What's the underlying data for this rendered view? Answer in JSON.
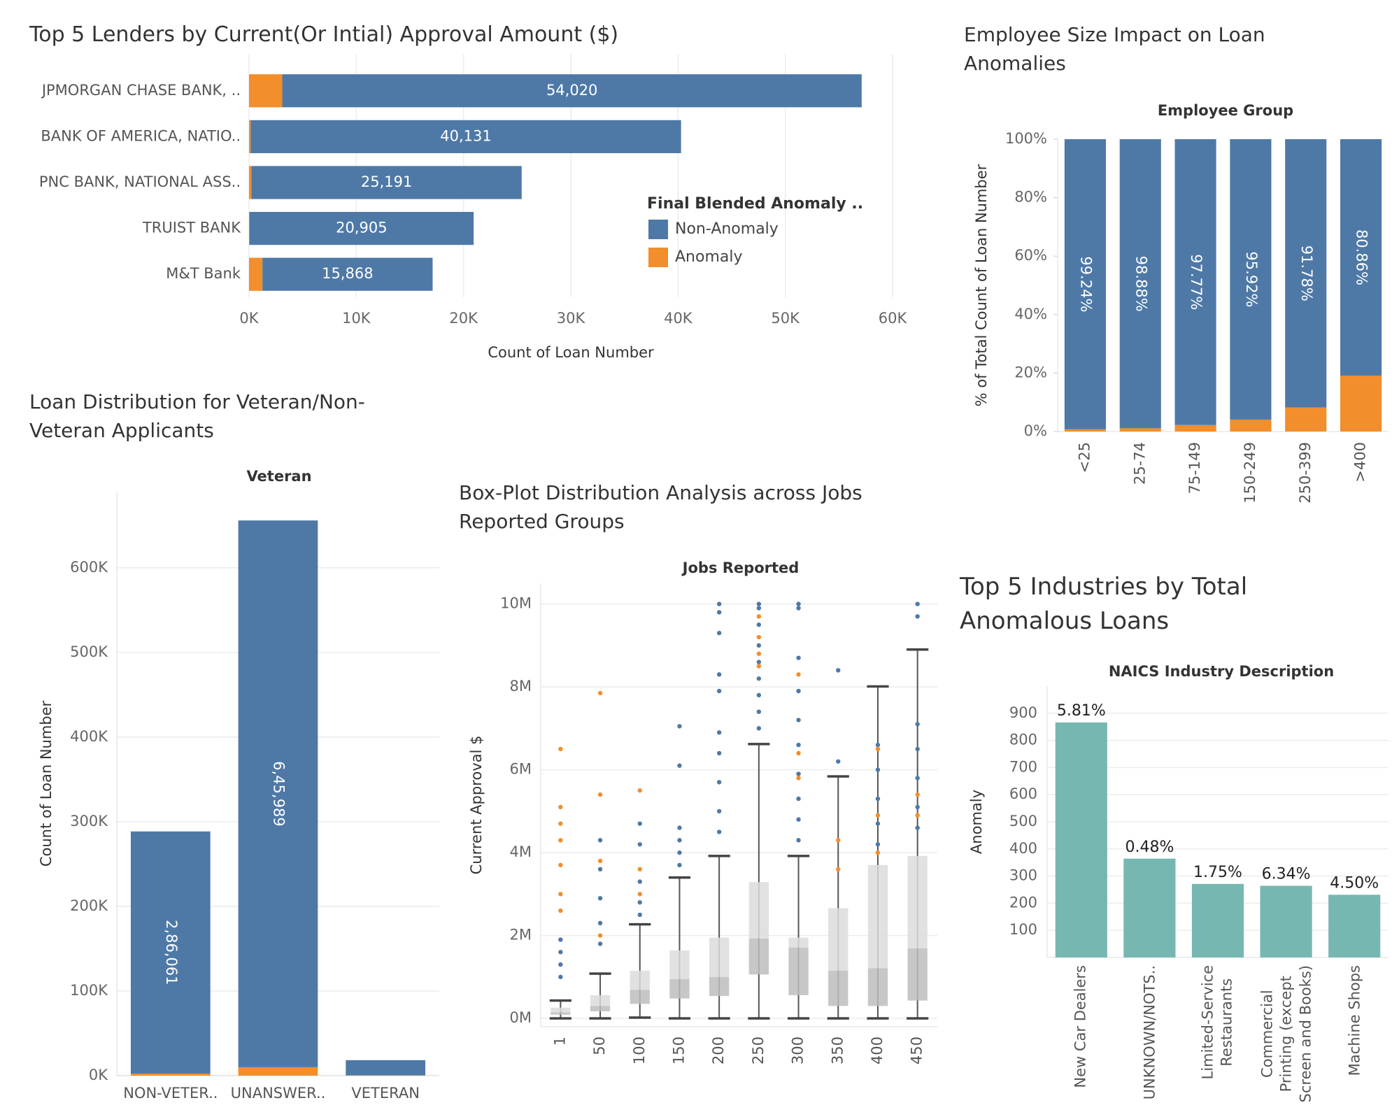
{
  "chart_data": [
    {
      "type": "bar",
      "orientation": "horizontal",
      "stacked": true,
      "title": "Top 5 Lenders by Current(Or Intial) Approval Amount ($)",
      "categories": [
        "JPMORGAN CHASE BANK, ..",
        "BANK OF AMERICA, NATIO..",
        "PNC BANK, NATIONAL ASS..",
        "TRUIST BANK",
        "M&T Bank"
      ],
      "series": [
        {
          "name": "Non-Anomaly",
          "color": "#4e79a7",
          "values": [
            54020,
            40131,
            25191,
            20905,
            15868
          ],
          "value_labels": [
            "54,020",
            "40,131",
            "25,191",
            "20,905",
            "15,868"
          ]
        },
        {
          "name": "Anomaly",
          "color": "#f28e2b",
          "values": [
            3100,
            150,
            230,
            40,
            1250
          ]
        }
      ],
      "x_label": "Count of Loan Number",
      "legend_title": "Final Blended Anomaly ..",
      "xlim": [
        0,
        60000
      ],
      "xticks": [
        {
          "value": 0,
          "label": "0K"
        },
        {
          "value": 10000,
          "label": "10K"
        },
        {
          "value": 20000,
          "label": "20K"
        },
        {
          "value": 30000,
          "label": "30K"
        },
        {
          "value": 40000,
          "label": "40K"
        },
        {
          "value": 50000,
          "label": "50K"
        },
        {
          "value": 60000,
          "label": "60K"
        }
      ],
      "grid": true
    },
    {
      "type": "bar",
      "stacked": true,
      "title": "Employee Size Impact on Loan Anomalies",
      "header": "Employee Group",
      "y_label": "% of Total Count of Loan Number",
      "categories": [
        "<25",
        "25-74",
        "75-149",
        "150-249",
        "250-399",
        ">400"
      ],
      "series": [
        {
          "color": "#4e79a7",
          "values": [
            99.24,
            98.88,
            97.77,
            95.92,
            91.78,
            80.86
          ],
          "value_labels": [
            "99.24%",
            "98.88%",
            "97.77%",
            "95.92%",
            "91.78%",
            "80.86%"
          ]
        },
        {
          "color": "#f28e2b",
          "values": [
            0.76,
            1.12,
            2.23,
            4.08,
            8.22,
            19.14
          ]
        }
      ],
      "ylim": [
        0,
        100
      ],
      "yticks": [
        {
          "value": 0,
          "label": "0%"
        },
        {
          "value": 20,
          "label": "20%"
        },
        {
          "value": 40,
          "label": "40%"
        },
        {
          "value": 60,
          "label": "60%"
        },
        {
          "value": 80,
          "label": "80%"
        },
        {
          "value": 100,
          "label": "100%"
        }
      ],
      "grid": false
    },
    {
      "type": "bar",
      "stacked": true,
      "title": "Loan Distribution for Veteran/Non-Veteran Applicants",
      "header": "Veteran",
      "y_label": "Count of Loan Number",
      "categories": [
        "NON-VETER..",
        "UNANSWER..",
        "VETERAN"
      ],
      "series": [
        {
          "color": "#4e79a7",
          "values": [
            286061,
            645989,
            18000
          ],
          "value_labels": [
            "2,86,061",
            "6,45,989",
            null
          ]
        },
        {
          "color": "#f28e2b",
          "values": [
            2500,
            10000,
            300
          ]
        }
      ],
      "ylim": [
        0,
        690000
      ],
      "yticks": [
        {
          "value": 0,
          "label": "0K"
        },
        {
          "value": 100000,
          "label": "100K"
        },
        {
          "value": 200000,
          "label": "200K"
        },
        {
          "value": 300000,
          "label": "300K"
        },
        {
          "value": 400000,
          "label": "400K"
        },
        {
          "value": 500000,
          "label": "500K"
        },
        {
          "value": 600000,
          "label": "600K"
        }
      ],
      "grid": true
    },
    {
      "type": "box",
      "title": "Box-Plot Distribution Analysis across Jobs Reported Groups",
      "header": "Jobs Reported",
      "y_label": "Current Approval $",
      "categories": [
        "1",
        "50",
        "100",
        "150",
        "200",
        "250",
        "300",
        "350",
        "400",
        "450"
      ],
      "point_color": "#4e79a7",
      "anomaly_color": "#f28e2b",
      "boxes": [
        {
          "low": 0,
          "q1": 90000,
          "median": 150000,
          "q3": 260000,
          "high": 430000,
          "outliers": [
            1900000,
            1600000,
            1300000,
            1000000
          ],
          "anomaly_outliers": [
            6500000,
            5100000,
            4700000,
            4300000,
            3700000,
            3000000,
            2600000
          ]
        },
        {
          "low": 0,
          "q1": 170000,
          "median": 300000,
          "q3": 560000,
          "high": 1080000,
          "outliers": [
            4300000,
            3600000,
            2900000,
            2300000,
            1800000
          ],
          "anomaly_outliers": [
            7850000,
            5400000,
            3800000,
            2000000
          ]
        },
        {
          "low": 20000,
          "q1": 350000,
          "median": 690000,
          "q3": 1150000,
          "high": 2270000,
          "outliers": [
            4700000,
            4200000,
            3300000,
            2800000,
            2500000
          ],
          "anomaly_outliers": [
            5500000,
            3600000,
            3000000
          ]
        },
        {
          "low": 0,
          "q1": 480000,
          "median": 950000,
          "q3": 1640000,
          "high": 3400000,
          "outliers": [
            7050000,
            6100000,
            4600000,
            4300000,
            4000000,
            3700000
          ],
          "anomaly_outliers": []
        },
        {
          "low": 0,
          "q1": 540000,
          "median": 1000000,
          "q3": 1950000,
          "high": 3920000,
          "outliers": [
            10000000,
            9800000,
            9300000,
            8300000,
            7900000,
            6900000,
            6400000,
            5700000,
            5000000,
            4500000
          ],
          "anomaly_outliers": []
        },
        {
          "low": 0,
          "q1": 1060000,
          "median": 1930000,
          "q3": 3290000,
          "high": 6620000,
          "outliers": [
            10000000,
            9900000,
            9500000,
            9000000,
            8600000,
            8200000,
            7800000,
            7400000,
            7000000
          ],
          "anomaly_outliers": [
            9700000,
            9200000,
            8800000,
            8500000
          ]
        },
        {
          "low": 0,
          "q1": 560000,
          "median": 1710000,
          "q3": 1950000,
          "high": 3920000,
          "outliers": [
            10000000,
            9900000,
            8700000,
            7900000,
            7200000,
            6600000,
            5900000,
            5300000,
            4800000,
            4300000
          ],
          "anomaly_outliers": [
            8300000,
            6400000,
            5800000
          ]
        },
        {
          "low": 0,
          "q1": 300000,
          "median": 1150000,
          "q3": 2660000,
          "high": 5840000,
          "outliers": [
            8400000,
            6200000
          ],
          "anomaly_outliers": [
            4300000,
            3600000
          ]
        },
        {
          "low": 0,
          "q1": 300000,
          "median": 1210000,
          "q3": 3700000,
          "high": 8010000,
          "outliers": [
            6600000,
            6000000,
            5300000,
            4700000,
            4200000
          ],
          "anomaly_outliers": [
            6500000,
            4900000,
            4000000
          ]
        },
        {
          "low": 0,
          "q1": 430000,
          "median": 1690000,
          "q3": 3920000,
          "high": 8900000,
          "outliers": [
            10000000,
            9700000,
            7100000,
            6500000,
            5800000,
            5100000,
            4600000
          ],
          "anomaly_outliers": [
            5400000,
            4900000
          ]
        }
      ],
      "ylim": [
        -200000,
        10500000
      ],
      "yticks": [
        {
          "value": 0,
          "label": "0M"
        },
        {
          "value": 2000000,
          "label": "2M"
        },
        {
          "value": 4000000,
          "label": "4M"
        },
        {
          "value": 6000000,
          "label": "6M"
        },
        {
          "value": 8000000,
          "label": "8M"
        },
        {
          "value": 10000000,
          "label": "10M"
        }
      ],
      "grid": true
    },
    {
      "type": "bar",
      "title": "Top 5 Industries by Total Anomalous Loans",
      "header": "NAICS Industry Description",
      "y_label": "Anomaly",
      "categories": [
        "New Car Dealers",
        "UNKNOWN/NOTS..",
        "Limited-Service\nRestaurants",
        "Commercial\nPrinting (except\nScreen and Books)",
        "Machine Shops"
      ],
      "values": [
        866,
        364,
        271,
        264,
        231
      ],
      "color": "#76b7b2",
      "rates": [
        5.81,
        0.48,
        1.75,
        6.34,
        4.5
      ],
      "rate_labels": [
        "5.81%",
        "0.48%",
        "1.75%",
        "6.34%",
        "4.50%"
      ],
      "ylim": [
        0,
        1000
      ],
      "yticks": [
        100,
        200,
        300,
        400,
        500,
        600,
        700,
        800,
        900
      ],
      "grid": true
    }
  ]
}
